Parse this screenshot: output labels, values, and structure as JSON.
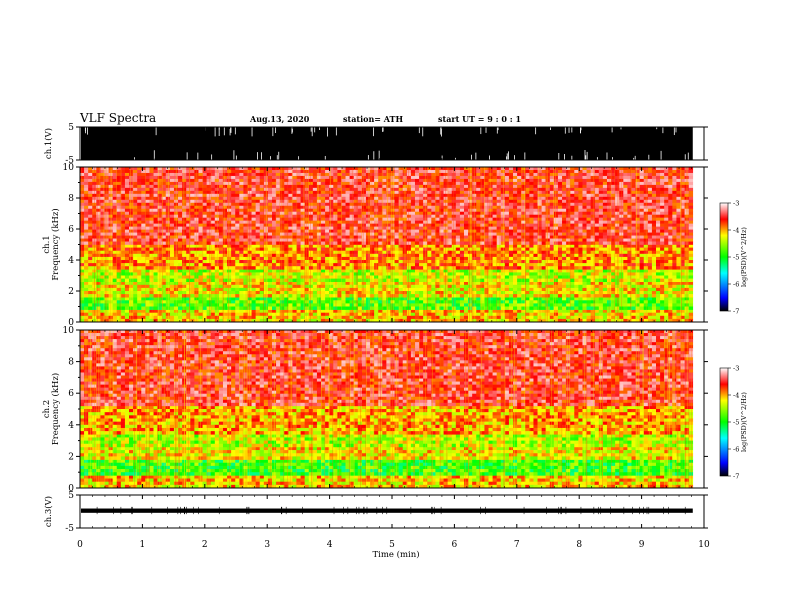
{
  "header": {
    "title": "VLF Spectra",
    "date": "Aug.13, 2020",
    "station": "station= ATH",
    "start_ut": "start UT =   9 : 0 : 1"
  },
  "chart_data": [
    {
      "type": "line",
      "ylabel": "ch.1(V)",
      "ylim": [
        -5,
        5
      ],
      "y_ticks": [
        "5",
        "-5"
      ],
      "description_values": {
        "band_low": -5,
        "band_high": 5
      }
    },
    {
      "type": "heatmap",
      "ylabel": "ch.1 Frequency (kHz)",
      "ylim": [
        0,
        10
      ],
      "y_ticks": [
        "0",
        "2",
        "4",
        "6",
        "8",
        "10"
      ],
      "colorbar": {
        "label": "log(PSD)(V^2/Hz)",
        "ticks": [
          "-3",
          "-4",
          "-5",
          "-6",
          "-7"
        ],
        "range": [
          -7,
          -3
        ]
      },
      "bands": [
        {
          "f_low": 0.0,
          "f_high": 0.8,
          "level": -4.2
        },
        {
          "f_low": 0.8,
          "f_high": 1.6,
          "level": -4.8
        },
        {
          "f_low": 1.6,
          "f_high": 2.6,
          "level": -4.3
        },
        {
          "f_low": 2.6,
          "f_high": 3.4,
          "level": -4.5
        },
        {
          "f_low": 3.4,
          "f_high": 5.0,
          "level": -4.0
        },
        {
          "f_low": 5.0,
          "f_high": 10.0,
          "level": -3.6
        }
      ]
    },
    {
      "type": "heatmap",
      "ylabel": "ch.2 Frequency (kHz)",
      "ylim": [
        0,
        10
      ],
      "y_ticks": [
        "0",
        "2",
        "4",
        "6",
        "8",
        "10"
      ],
      "colorbar": {
        "label": "log(PSD)(V^2/Hz)",
        "ticks": [
          "-3",
          "-4",
          "-5",
          "-6",
          "-7"
        ],
        "range": [
          -7,
          -3
        ]
      },
      "bands": [
        {
          "f_low": 0.0,
          "f_high": 0.8,
          "level": -4.2
        },
        {
          "f_low": 0.8,
          "f_high": 1.8,
          "level": -4.9
        },
        {
          "f_low": 1.8,
          "f_high": 2.6,
          "level": -4.3
        },
        {
          "f_low": 2.6,
          "f_high": 3.4,
          "level": -4.5
        },
        {
          "f_low": 3.4,
          "f_high": 5.2,
          "level": -4.1
        },
        {
          "f_low": 5.2,
          "f_high": 10.0,
          "level": -3.6
        }
      ]
    },
    {
      "type": "line",
      "ylabel": "ch.3(V)",
      "ylim": [
        -5,
        5
      ],
      "y_ticks": [
        "5",
        "-5"
      ],
      "description_values": {
        "center": 0,
        "amplitude": 0.4
      }
    }
  ],
  "x_axis": {
    "label": "Time (min)",
    "xlim": [
      0,
      10
    ],
    "ticks": [
      "0",
      "1",
      "2",
      "3",
      "4",
      "5",
      "6",
      "7",
      "8",
      "9",
      "10"
    ],
    "data_end": 9.82
  },
  "colors": {
    "high": "#ff0000",
    "mid": "#ffff00",
    "low": "#00ff00",
    "lower": "#0000ff",
    "lowest": "#000000",
    "background": "#ffffff"
  }
}
